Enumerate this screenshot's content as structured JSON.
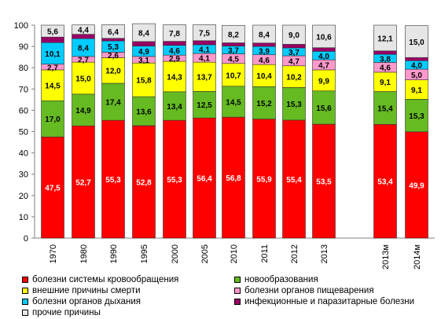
{
  "chart_data": {
    "type": "bar",
    "stacked": true,
    "categories": [
      "1970",
      "1980",
      "1990",
      "1995",
      "2000",
      "2005",
      "2010",
      "2011",
      "2012",
      "2013",
      "2013м",
      "2014м"
    ],
    "ylim": [
      0,
      100
    ],
    "yticks": [
      "0",
      "10",
      "20",
      "30",
      "40",
      "50",
      "60",
      "70",
      "80",
      "90",
      "100"
    ],
    "grid": false,
    "legend_position": "bottom",
    "series": [
      {
        "name": "болезни системы кровообращения",
        "color": "#ff0000",
        "label_color": "#ffffff",
        "values": [
          47.5,
          52.7,
          55.3,
          52.8,
          55.3,
          56.4,
          56.8,
          55.9,
          55.4,
          53.5,
          53.4,
          49.9
        ],
        "labels": [
          "47,5",
          "52,7",
          "55,3",
          "52,8",
          "55,3",
          "56,4",
          "56,8",
          "55,9",
          "55,4",
          "53,5",
          "53,4",
          "49,9"
        ]
      },
      {
        "name": "новообразования",
        "color": "#66bb22",
        "label_color": "#000000",
        "values": [
          17.0,
          14.9,
          17.4,
          13.6,
          13.4,
          12.5,
          14.5,
          15.2,
          15.3,
          15.6,
          15.4,
          15.3
        ],
        "labels": [
          "17,0",
          "14,9",
          "17,4",
          "13,6",
          "13,4",
          "12,5",
          "14,5",
          "15,2",
          "15,3",
          "15,6",
          "15,4",
          "15,3"
        ]
      },
      {
        "name": "внешние причины смерти",
        "color": "#ffff00",
        "label_color": "#000000",
        "values": [
          14.5,
          15.0,
          12.0,
          15.8,
          14.3,
          13.7,
          10.7,
          10.4,
          10.2,
          9.9,
          9.1,
          9.1
        ],
        "labels": [
          "14,5",
          "15,0",
          "12,0",
          "15,8",
          "14,3",
          "13,7",
          "10,7",
          "10,4",
          "10,2",
          "9,9",
          "9,1",
          "9,1"
        ]
      },
      {
        "name": "болезни органов пищеварения",
        "color": "#ff99cc",
        "label_color": "#000000",
        "values": [
          2.7,
          2.7,
          2.6,
          3.1,
          2.9,
          4.1,
          4.5,
          4.6,
          4.7,
          4.7,
          4.6,
          5.0
        ],
        "labels": [
          "2,7",
          "2,7",
          "2,6",
          "3,1",
          "2,9",
          "4,1",
          "4,5",
          "4,6",
          "4,7",
          "4,7",
          "4,6",
          "5,0"
        ]
      },
      {
        "name": "болезни органов дыхания",
        "color": "#00ccff",
        "label_color": "#000000",
        "values": [
          10.1,
          8.4,
          5.3,
          4.9,
          4.6,
          4.1,
          3.7,
          3.9,
          3.7,
          4.0,
          3.8,
          4.0
        ],
        "labels": [
          "10,1",
          "8,4",
          "5,3",
          "4,9",
          "4,6",
          "4,1",
          "3,7",
          "3,9",
          "3,7",
          "4,0",
          "3,8",
          "4,0"
        ]
      },
      {
        "name": "инфекционные и паразитарные болезни",
        "color": "#990066",
        "label_color": "#000000",
        "values": [
          2.6,
          2.0,
          1.2,
          2.1,
          1.9,
          1.9,
          1.5,
          1.6,
          1.7,
          1.7,
          1.6,
          1.5
        ],
        "labels": [
          "",
          "",
          "",
          "",
          "",
          "",
          "",
          "",
          "",
          "",
          "",
          ""
        ]
      },
      {
        "name": "прочие причины",
        "color": "#e6e6e6",
        "label_color": "#000000",
        "values": [
          5.6,
          4.4,
          6.4,
          8.4,
          7.8,
          7.5,
          8.2,
          8.4,
          9.0,
          10.6,
          12.1,
          15.0
        ],
        "labels": [
          "5,6",
          "4,4",
          "6,4",
          "8,4",
          "7,8",
          "7,5",
          "8,2",
          "8,4",
          "9,0",
          "10,6",
          "12,1",
          "15,0"
        ]
      }
    ]
  }
}
